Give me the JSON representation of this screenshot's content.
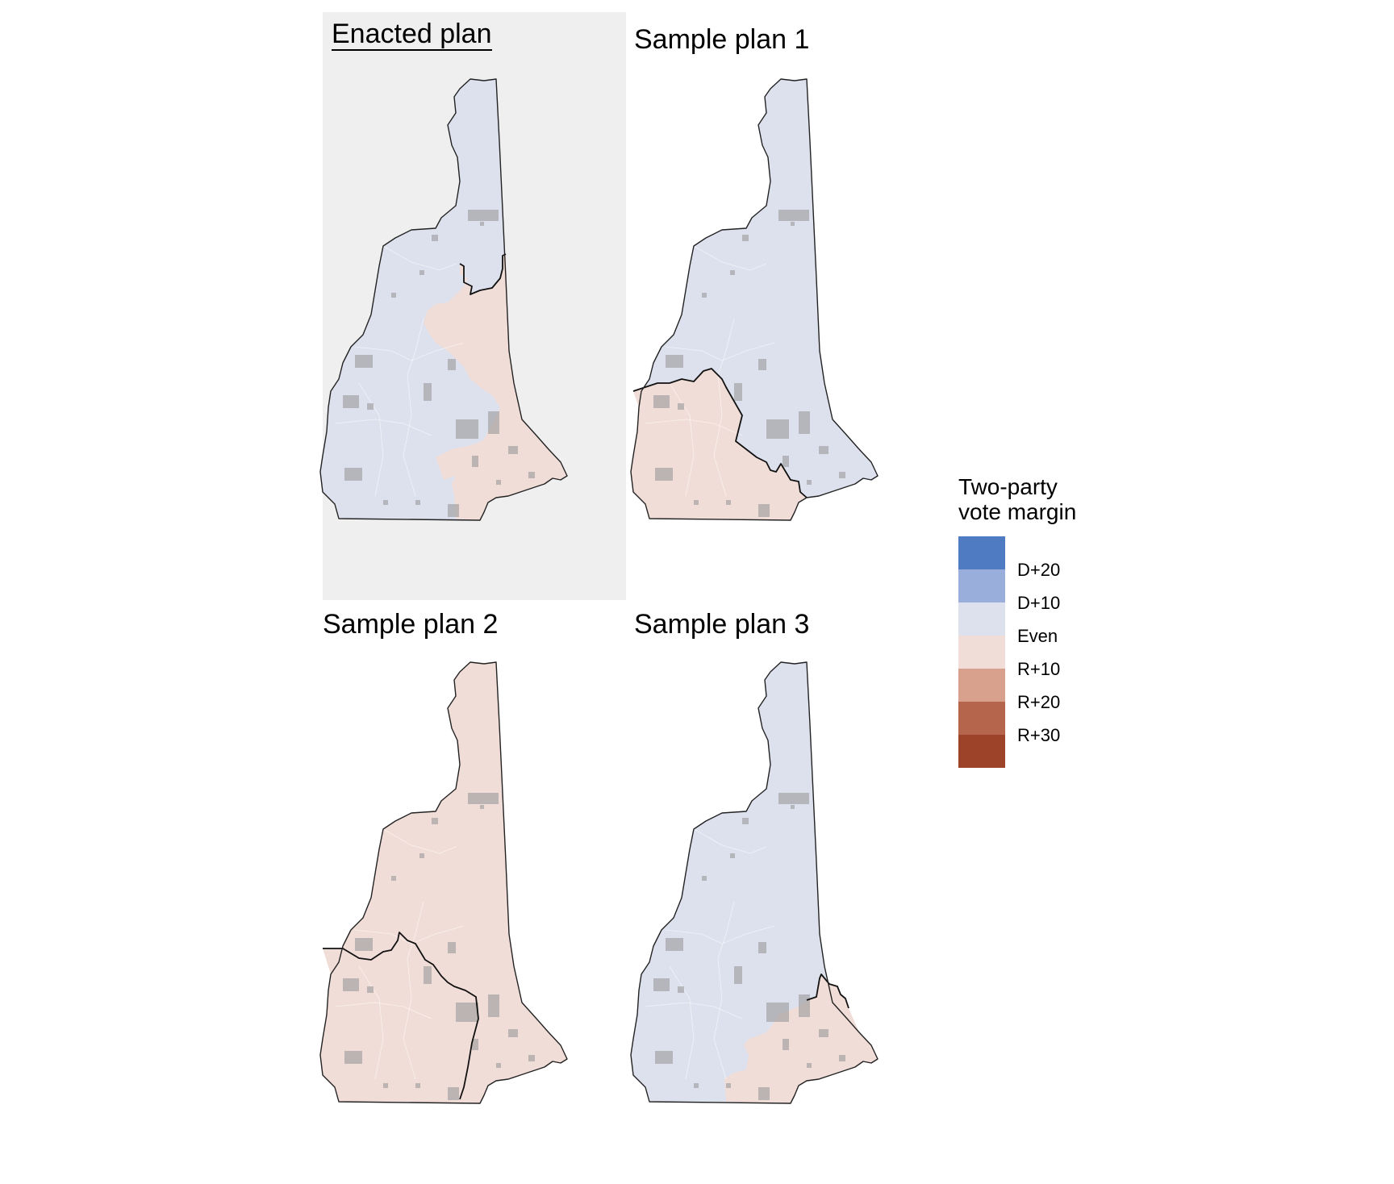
{
  "panels": [
    {
      "title": "Enacted plan",
      "highlighted": true,
      "district_colors": {
        "north": "#dde1ee",
        "south": "#f1ddd7"
      }
    },
    {
      "title": "Sample plan 1",
      "highlighted": false,
      "district_colors": {
        "north": "#dde1ee",
        "south": "#f1ddd7"
      }
    },
    {
      "title": "Sample plan 2",
      "highlighted": false,
      "district_colors": {
        "north": "#f1ddd7",
        "south": "#f1ddd7"
      }
    },
    {
      "title": "Sample plan 3",
      "highlighted": false,
      "district_colors": {
        "north": "#dde1ee",
        "south": "#f1ddd7"
      }
    }
  ],
  "city_color": "#9a9a9a",
  "legend": {
    "title_line1": "Two-party",
    "title_line2": "vote margin",
    "swatches": [
      "#4f7bc2",
      "#9aaedc",
      "#dde1ee",
      "#f1ddd7",
      "#d8a18d",
      "#b6654d",
      "#9d432a"
    ],
    "labels": [
      "D+20",
      "D+10",
      "Even",
      "R+10",
      "R+20",
      "R+30"
    ]
  }
}
